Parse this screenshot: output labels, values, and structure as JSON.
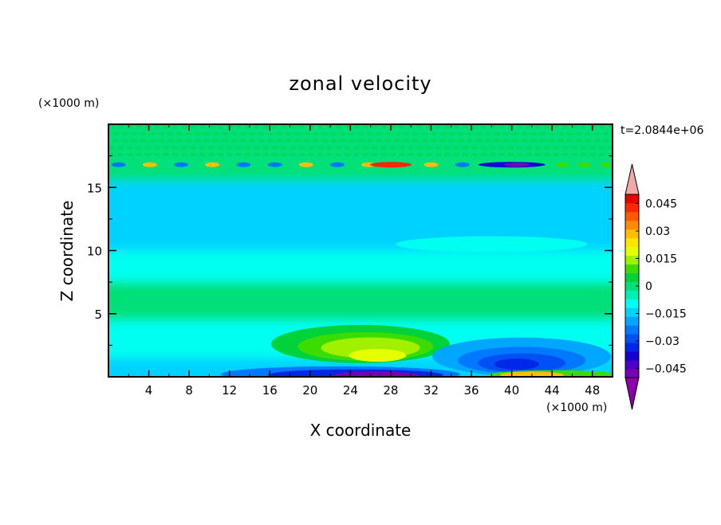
{
  "chart_data": {
    "type": "heatmap",
    "title": "zonal velocity",
    "xlabel": "X coordinate",
    "ylabel": "Z coordinate",
    "x_unit": "(×1000 m)",
    "y_unit": "(×1000 m)",
    "time_label": "t=2.0844e+06",
    "xlim": [
      0,
      50
    ],
    "ylim": [
      0,
      20
    ],
    "x_ticks": [
      4,
      8,
      12,
      16,
      20,
      24,
      28,
      32,
      36,
      40,
      44,
      48
    ],
    "y_ticks": [
      5,
      10,
      15
    ],
    "colorbar": {
      "levels": [
        -0.05,
        -0.045,
        -0.04,
        -0.035,
        -0.03,
        -0.025,
        -0.02,
        -0.015,
        -0.01,
        -0.005,
        0,
        0.005,
        0.01,
        0.015,
        0.02,
        0.025,
        0.03,
        0.035,
        0.04,
        0.045,
        0.05
      ],
      "labels": [
        "0.045",
        "0.03",
        "0.015",
        "0",
        "−0.015",
        "−0.03",
        "−0.045"
      ],
      "label_values": [
        0.045,
        0.03,
        0.015,
        0,
        -0.015,
        -0.03,
        -0.045
      ],
      "colors": [
        "#7a00b4",
        "#4a00c8",
        "#1400d2",
        "#0028e6",
        "#0050f5",
        "#0078ff",
        "#00a6ff",
        "#00d2ff",
        "#00fff0",
        "#00f0b4",
        "#00e078",
        "#00d23c",
        "#3cdc00",
        "#a0f000",
        "#e6ff00",
        "#ffe600",
        "#ffbe00",
        "#ff8c00",
        "#ff5a00",
        "#ff2800",
        "#e60000"
      ],
      "under_color": "#8c00aa",
      "over_color": "#f0a8a8"
    },
    "features": [
      {
        "x": 25,
        "z": 2.3,
        "value": 0.015
      },
      {
        "x": 41,
        "z": 1.0,
        "value": -0.035
      },
      {
        "x": 27,
        "z": 0.1,
        "value": -0.045
      },
      {
        "x": 42,
        "z": 0.2,
        "value": 0.04
      },
      {
        "x": 40,
        "z": 16.8,
        "value": -0.045
      },
      {
        "x": 28,
        "z": 16.8,
        "value": 0.045
      }
    ]
  }
}
